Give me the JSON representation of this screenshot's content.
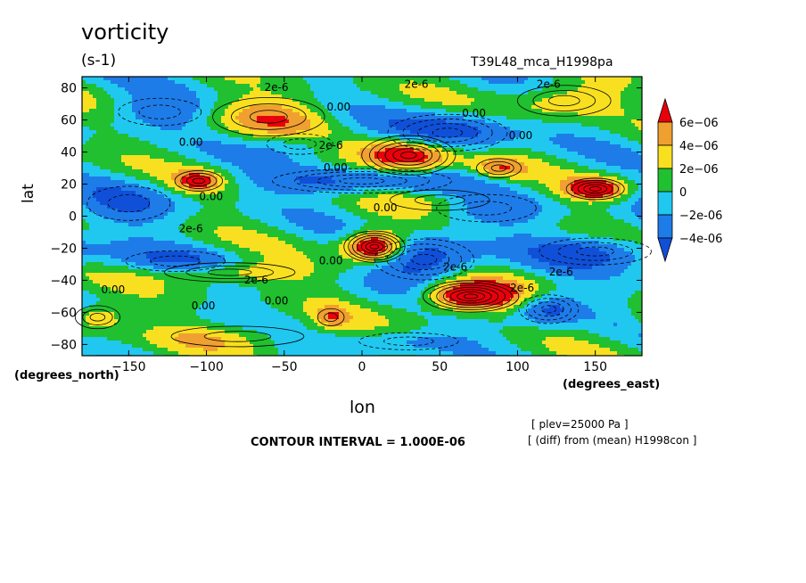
{
  "header": {
    "title": "vorticity",
    "units": "(s-1)",
    "run_label": "T39L48_mca_H1998pa"
  },
  "footer": {
    "contour_interval": "CONTOUR INTERVAL = 1.000E-06",
    "note_level": "[ plev=25000 Pa ]",
    "note_diff": "[ (diff) from (mean) H1998con ]"
  },
  "chart_data": {
    "type": "heatmap",
    "title": "vorticity",
    "subtitle": "(s-1)",
    "xlabel": "lon",
    "ylabel": "lat",
    "xunit": "(degrees_east)",
    "yunit": "(degrees_north)",
    "xlim": [
      -180,
      180
    ],
    "ylim": [
      -87,
      87
    ],
    "xticks": [
      -150,
      -100,
      -50,
      0,
      50,
      100,
      150
    ],
    "yticks": [
      -80,
      -60,
      -40,
      -20,
      0,
      20,
      40,
      60,
      80
    ],
    "colorbar": {
      "levels": [
        "6e-06",
        "4e-06",
        "2e-06",
        "0",
        "-2e-06",
        "-4e-06"
      ],
      "colors": [
        "#e8000b",
        "#f0a030",
        "#f8e020",
        "#20c030",
        "#20c8f0",
        "#1e7ce8",
        "#1050d8"
      ]
    },
    "contour_labels": [
      {
        "text": "2e-6",
        "lon": -55,
        "lat": 78
      },
      {
        "text": "2e-6",
        "lon": 35,
        "lat": 80
      },
      {
        "text": "2e-6",
        "lon": 120,
        "lat": 80
      },
      {
        "text": "0.00",
        "lon": -15,
        "lat": 66
      },
      {
        "text": "0.00",
        "lon": 72,
        "lat": 62
      },
      {
        "text": "0.00",
        "lon": 102,
        "lat": 48
      },
      {
        "text": "0.00",
        "lon": -110,
        "lat": 44
      },
      {
        "text": "2e-6",
        "lon": -20,
        "lat": 42
      },
      {
        "text": "0.00",
        "lon": -17,
        "lat": 28
      },
      {
        "text": "0.00",
        "lon": -97,
        "lat": 10
      },
      {
        "text": "0.00",
        "lon": 15,
        "lat": 3
      },
      {
        "text": "2e-6",
        "lon": -110,
        "lat": -10
      },
      {
        "text": "0.00",
        "lon": -20,
        "lat": -30
      },
      {
        "text": "2e-6",
        "lon": -68,
        "lat": -42
      },
      {
        "text": "0.00",
        "lon": -55,
        "lat": -55
      },
      {
        "text": "0.00",
        "lon": -102,
        "lat": -58
      },
      {
        "text": "0.00",
        "lon": -160,
        "lat": -48
      },
      {
        "text": "2e-6",
        "lon": 128,
        "lat": -37
      },
      {
        "text": "2e-6",
        "lon": 103,
        "lat": -47
      },
      {
        "text": "2e-6",
        "lon": 60,
        "lat": -34
      }
    ],
    "features": [
      {
        "kind": "pos",
        "lon": 30,
        "lat": 38,
        "a": 1.0,
        "sx": 22,
        "sy": 9
      },
      {
        "kind": "neg",
        "lon": 55,
        "lat": 52,
        "a": 0.7,
        "sx": 30,
        "sy": 9
      },
      {
        "kind": "pos",
        "lon": 88,
        "lat": 30,
        "a": 0.45,
        "sx": 12,
        "sy": 5
      },
      {
        "kind": "neg",
        "lon": 0,
        "lat": 22,
        "a": 0.6,
        "sx": 45,
        "sy": 6
      },
      {
        "kind": "pos",
        "lon": 150,
        "lat": 17,
        "a": 0.9,
        "sx": 14,
        "sy": 5
      },
      {
        "kind": "pos",
        "lon": -105,
        "lat": 22,
        "a": 0.6,
        "sx": 12,
        "sy": 5
      },
      {
        "kind": "pos",
        "lon": 8,
        "lat": -19,
        "a": 1.2,
        "sx": 14,
        "sy": 7
      },
      {
        "kind": "neg",
        "lon": 40,
        "lat": -27,
        "a": 0.7,
        "sx": 25,
        "sy": 10
      },
      {
        "kind": "pos",
        "lon": 70,
        "lat": -50,
        "a": 1.1,
        "sx": 22,
        "sy": 7
      },
      {
        "kind": "neg",
        "lon": 120,
        "lat": -58,
        "a": 0.6,
        "sx": 15,
        "sy": 7
      },
      {
        "kind": "neg",
        "lon": 150,
        "lat": -22,
        "a": 0.55,
        "sx": 30,
        "sy": 7
      },
      {
        "kind": "pos",
        "lon": -170,
        "lat": -63,
        "a": 0.45,
        "sx": 12,
        "sy": 6
      },
      {
        "kind": "pos",
        "lon": -20,
        "lat": -63,
        "a": 0.4,
        "sx": 8,
        "sy": 5
      },
      {
        "kind": "pos",
        "lon": -60,
        "lat": 62,
        "a": 0.45,
        "sx": 30,
        "sy": 10
      },
      {
        "kind": "pos",
        "lon": 130,
        "lat": 72,
        "a": 0.45,
        "sx": 25,
        "sy": 8
      },
      {
        "kind": "neg",
        "lon": -130,
        "lat": 65,
        "a": 0.4,
        "sx": 25,
        "sy": 8
      },
      {
        "kind": "pos",
        "lon": -85,
        "lat": -35,
        "a": 0.45,
        "sx": 35,
        "sy": 5
      },
      {
        "kind": "neg",
        "lon": -120,
        "lat": -28,
        "a": 0.35,
        "sx": 30,
        "sy": 6
      },
      {
        "kind": "neg",
        "lon": 80,
        "lat": 5,
        "a": 0.35,
        "sx": 30,
        "sy": 8
      },
      {
        "kind": "neg",
        "lon": -150,
        "lat": 8,
        "a": 0.35,
        "sx": 25,
        "sy": 10
      },
      {
        "kind": "pos",
        "lon": -80,
        "lat": -75,
        "a": 0.3,
        "sx": 40,
        "sy": 6
      },
      {
        "kind": "neg",
        "lon": 30,
        "lat": -78,
        "a": 0.3,
        "sx": 30,
        "sy": 5
      },
      {
        "kind": "pos",
        "lon": 50,
        "lat": 10,
        "a": 0.3,
        "sx": 30,
        "sy": 6
      },
      {
        "kind": "neg",
        "lon": -40,
        "lat": 45,
        "a": 0.3,
        "sx": 20,
        "sy": 6
      }
    ]
  }
}
